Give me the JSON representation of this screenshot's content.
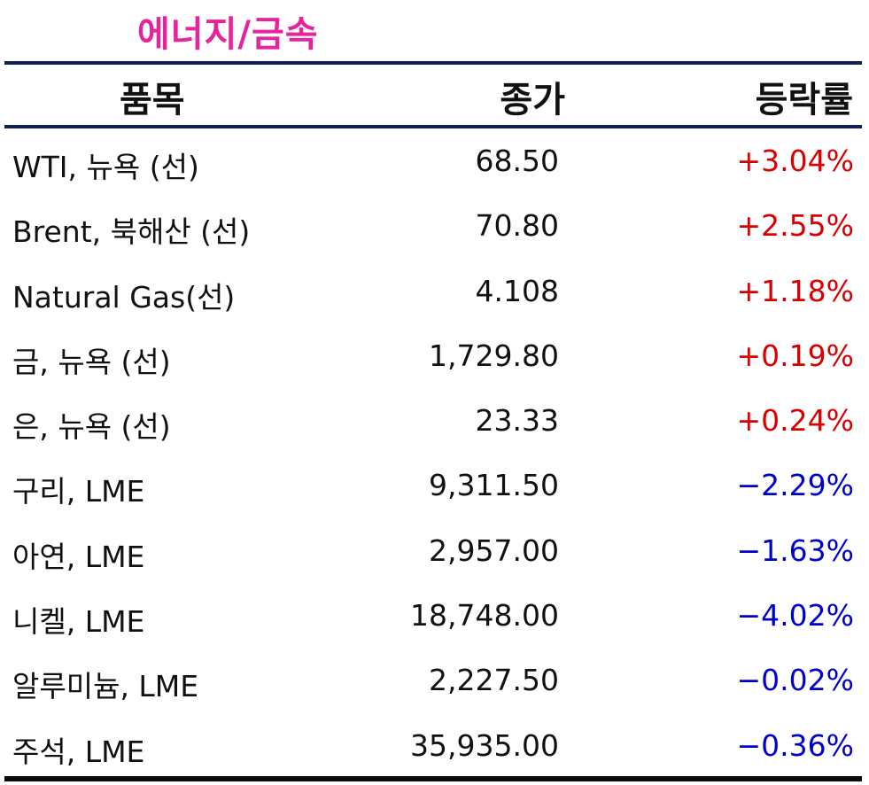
{
  "title": "에너지/금속",
  "header": {
    "name": "품목",
    "close": "종가",
    "change": "등락률"
  },
  "colors": {
    "title": "#e6249b",
    "rule": "#0d2257",
    "up": "#d80000",
    "down": "#0000cc"
  },
  "rows": [
    {
      "name": "WTI, 뉴욕 (선)",
      "close": "68.50",
      "change": "+3.04%",
      "dir": "up"
    },
    {
      "name": "Brent, 북해산 (선)",
      "close": "70.80",
      "change": "+2.55%",
      "dir": "up"
    },
    {
      "name": "Natural Gas(선)",
      "close": "4.108",
      "change": "+1.18%",
      "dir": "up"
    },
    {
      "name": "금, 뉴욕  (선)",
      "close": "1,729.80",
      "change": "+0.19%",
      "dir": "up"
    },
    {
      "name": "은, 뉴욕  (선)",
      "close": "23.33",
      "change": "+0.24%",
      "dir": "up"
    },
    {
      "name": "구리, LME",
      "close": "9,311.50",
      "change": "−2.29%",
      "dir": "down"
    },
    {
      "name": "아연, LME",
      "close": "2,957.00",
      "change": "−1.63%",
      "dir": "down"
    },
    {
      "name": "니켈, LME",
      "close": "18,748.00",
      "change": "−4.02%",
      "dir": "down"
    },
    {
      "name": "알루미늄, LME",
      "close": "2,227.50",
      "change": "−0.02%",
      "dir": "down"
    },
    {
      "name": "주석, LME",
      "close": "35,935.00",
      "change": "−0.36%",
      "dir": "down"
    }
  ]
}
